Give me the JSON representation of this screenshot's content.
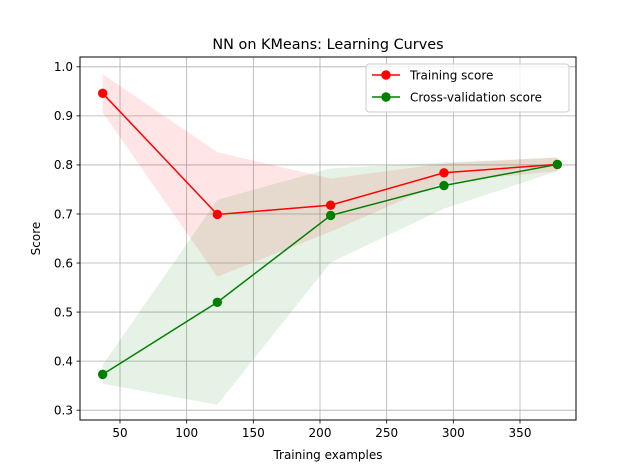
{
  "chart_data": {
    "type": "line",
    "title": "NN on KMeans: Learning Curves",
    "xlabel": "Training examples",
    "ylabel": "Score",
    "xlim": [
      20,
      392
    ],
    "ylim": [
      0.28,
      1.02
    ],
    "x_ticks": [
      50,
      100,
      150,
      200,
      250,
      300,
      350
    ],
    "y_ticks": [
      0.3,
      0.4,
      0.5,
      0.6,
      0.7,
      0.8,
      0.9,
      1.0
    ],
    "grid": true,
    "legend_position": "upper right",
    "x": [
      37,
      123,
      208,
      293,
      378
    ],
    "series": [
      {
        "name": "Training score",
        "color": "#ff0000",
        "values": [
          0.946,
          0.699,
          0.718,
          0.784,
          0.801
        ],
        "band_upper": [
          0.985,
          0.826,
          0.772,
          0.803,
          0.815
        ],
        "band_lower": [
          0.907,
          0.572,
          0.664,
          0.765,
          0.787
        ]
      },
      {
        "name": "Cross-validation score",
        "color": "#008000",
        "values": [
          0.373,
          0.52,
          0.697,
          0.758,
          0.801
        ],
        "band_upper": [
          0.392,
          0.729,
          0.793,
          0.805,
          0.815
        ],
        "band_lower": [
          0.354,
          0.311,
          0.601,
          0.711,
          0.787
        ]
      }
    ]
  }
}
